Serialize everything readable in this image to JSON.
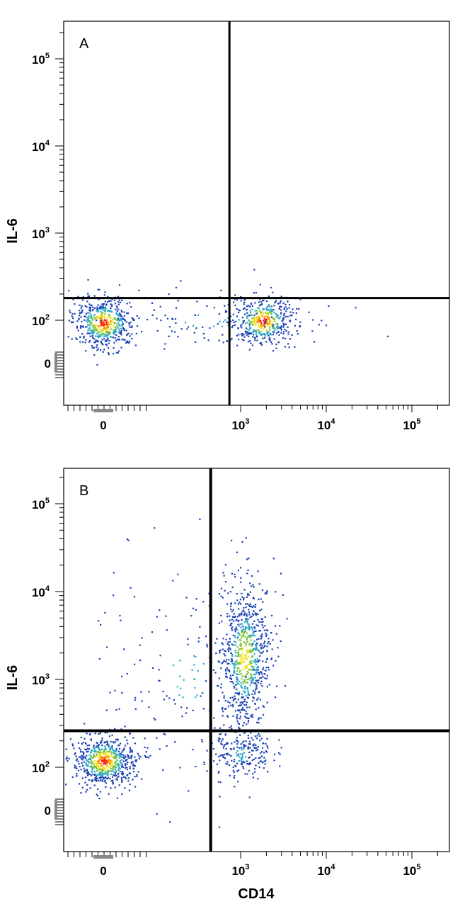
{
  "chart_data": [
    {
      "type": "scatter",
      "panel_label": "A",
      "xlabel": "",
      "ylabel": "IL-6",
      "x_scale": "biexponential",
      "y_scale": "biexponential",
      "x_ticks": [
        {
          "value": 0,
          "label": "0",
          "exp": ""
        },
        {
          "value": 1000,
          "label": "10",
          "exp": "3"
        },
        {
          "value": 10000,
          "label": "10",
          "exp": "4"
        },
        {
          "value": 100000,
          "label": "10",
          "exp": "5"
        }
      ],
      "y_ticks": [
        {
          "value": 0,
          "label": "0",
          "exp": ""
        },
        {
          "value": 100,
          "label": "10",
          "exp": "2"
        },
        {
          "value": 1000,
          "label": "10",
          "exp": "3"
        },
        {
          "value": 10000,
          "label": "10",
          "exp": "4"
        },
        {
          "value": 100000,
          "label": "10",
          "exp": "5"
        }
      ],
      "quadrant_gate": {
        "x": 750,
        "y": 180
      },
      "populations": [
        {
          "x_center": 0,
          "y_center": 95,
          "count": 520,
          "peak_color": "#ff2200"
        },
        {
          "x_center": 1800,
          "y_center": 100,
          "count": 420,
          "peak_color": "#ff2200"
        },
        {
          "x_center": 450,
          "y_center": 100,
          "count": 120,
          "peak_color": "#1a3fb4"
        }
      ],
      "density_colors": [
        "#1a3fb4",
        "#2aa8c8",
        "#7cc43c",
        "#f2e21c",
        "#ff8a00",
        "#ff2200"
      ]
    },
    {
      "type": "scatter",
      "panel_label": "B",
      "xlabel": "CD14",
      "ylabel": "IL-6",
      "x_scale": "biexponential",
      "y_scale": "biexponential",
      "x_ticks": [
        {
          "value": 0,
          "label": "0",
          "exp": ""
        },
        {
          "value": 1000,
          "label": "10",
          "exp": "3"
        },
        {
          "value": 10000,
          "label": "10",
          "exp": "4"
        },
        {
          "value": 100000,
          "label": "10",
          "exp": "5"
        }
      ],
      "y_ticks": [
        {
          "value": 0,
          "label": "0",
          "exp": ""
        },
        {
          "value": 100,
          "label": "10",
          "exp": "2"
        },
        {
          "value": 1000,
          "label": "10",
          "exp": "3"
        },
        {
          "value": 10000,
          "label": "10",
          "exp": "4"
        },
        {
          "value": 100000,
          "label": "10",
          "exp": "5"
        }
      ],
      "quadrant_gate": {
        "x": 450,
        "y": 260
      },
      "populations": [
        {
          "x_center": 0,
          "y_center": 120,
          "count": 650,
          "peak_color": "#ff2200"
        },
        {
          "x_center": 1100,
          "y_center": 1800,
          "count": 780,
          "peak_color": "#f2e21c"
        },
        {
          "x_center": 1000,
          "y_center": 140,
          "count": 200,
          "peak_color": "#1a3fb4"
        },
        {
          "x_center": 200,
          "y_center": 1200,
          "count": 160,
          "peak_color": "#1a3fb4"
        }
      ],
      "density_colors": [
        "#1a3fb4",
        "#2aa8c8",
        "#7cc43c",
        "#f2e21c",
        "#ff8a00",
        "#ff2200"
      ]
    }
  ]
}
